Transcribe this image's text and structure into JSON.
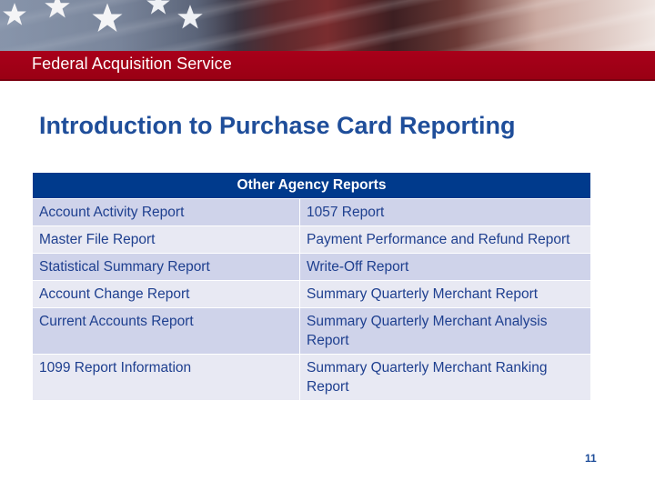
{
  "header": {
    "organization": "Federal Acquisition Service",
    "banner_colors": {
      "band": "#a8001a",
      "text": "#ffffff"
    }
  },
  "slide": {
    "title": "Introduction to Purchase Card Reporting",
    "page_number": "11"
  },
  "table": {
    "header": "Other Agency Reports",
    "rows": [
      {
        "left": "Account Activity Report",
        "right": "1057 Report"
      },
      {
        "left": "Master File Report",
        "right": "Payment Performance and Refund Report"
      },
      {
        "left": "Statistical Summary Report",
        "right": "Write-Off Report"
      },
      {
        "left": "Account Change Report",
        "right": "Summary Quarterly Merchant Report"
      },
      {
        "left": "Current Accounts Report",
        "right": "Summary Quarterly Merchant Analysis Report"
      },
      {
        "left": "1099 Report Information",
        "right": "Summary Quarterly Merchant Ranking Report"
      }
    ]
  },
  "colors": {
    "title": "#1f4e9a",
    "table_header_bg": "#003a8c",
    "row_dark": "#cfd3ea",
    "row_light": "#e8e9f3"
  },
  "icons": {
    "banner_stars": "star-icon"
  }
}
